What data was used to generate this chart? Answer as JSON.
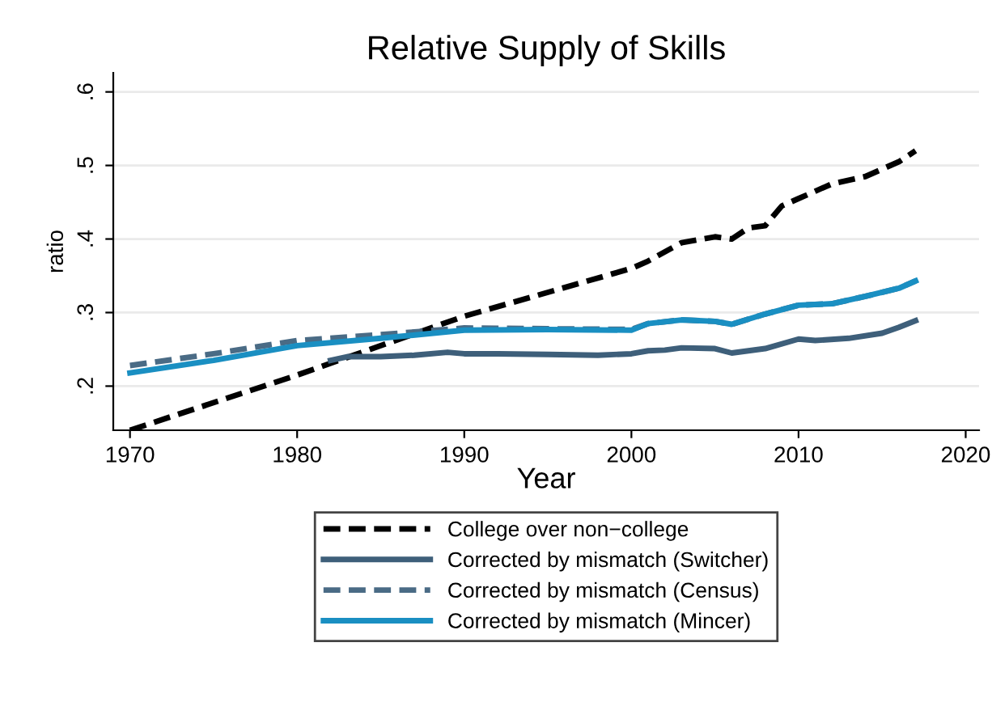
{
  "chart_data": {
    "type": "line",
    "title": "Relative Supply of Skills",
    "xlabel": "Year",
    "ylabel": "ratio",
    "xlim": [
      1969,
      2020.8
    ],
    "xticks": [
      1970,
      1980,
      1990,
      2000,
      2010,
      2020
    ],
    "ylim": [
      0.14,
      0.626
    ],
    "yticks": [
      {
        "value": 0.2,
        "label": ".2"
      },
      {
        "value": 0.3,
        "label": ".3"
      },
      {
        "value": 0.4,
        "label": ".4"
      },
      {
        "value": 0.5,
        "label": ".5"
      },
      {
        "value": 0.6,
        "label": ".6"
      }
    ],
    "grid": "y",
    "legend": "bottom",
    "series": [
      {
        "name": "College over non−college",
        "color": "#000000",
        "line_style": "dashed",
        "x": [
          1970,
          1980,
          1990,
          2000,
          2001,
          2003,
          2005,
          2006,
          2007,
          2008,
          2009,
          2010,
          2012,
          2014,
          2016,
          2017
        ],
        "values": [
          0.14,
          0.215,
          0.295,
          0.36,
          0.37,
          0.395,
          0.403,
          0.4,
          0.415,
          0.418,
          0.445,
          0.455,
          0.475,
          0.485,
          0.505,
          0.52
        ]
      },
      {
        "name": "Corrected by mismatch (Switcher)",
        "color": "#3e5f7a",
        "line_style": "solid",
        "x": [
          1982,
          1983,
          1985,
          1987,
          1989,
          1990,
          1992,
          1995,
          1998,
          2000,
          2001,
          2002,
          2003,
          2005,
          2006,
          2008,
          2010,
          2011,
          2013,
          2015,
          2016,
          2017
        ],
        "values": [
          0.235,
          0.24,
          0.24,
          0.242,
          0.246,
          0.244,
          0.244,
          0.243,
          0.242,
          0.244,
          0.248,
          0.249,
          0.252,
          0.251,
          0.245,
          0.251,
          0.264,
          0.262,
          0.265,
          0.272,
          0.28,
          0.289
        ]
      },
      {
        "name": "Corrected by mismatch (Census)",
        "color": "#4a6b85",
        "line_style": "dashed",
        "x": [
          1970,
          1975,
          1980,
          1985,
          1990,
          1995,
          2000,
          2001,
          2003,
          2005,
          2006,
          2008,
          2010,
          2012,
          2014,
          2016,
          2017
        ],
        "values": [
          0.228,
          0.244,
          0.262,
          0.27,
          0.279,
          0.278,
          0.277,
          0.285,
          0.29,
          0.288,
          0.284,
          0.298,
          0.31,
          0.312,
          0.322,
          0.333,
          0.343
        ]
      },
      {
        "name": "Corrected by mismatch (Mincer)",
        "color": "#1a8fc2",
        "line_style": "solid",
        "x": [
          1970,
          1975,
          1980,
          1985,
          1990,
          1995,
          2000,
          2001,
          2003,
          2005,
          2006,
          2008,
          2010,
          2012,
          2014,
          2016,
          2017
        ],
        "values": [
          0.218,
          0.235,
          0.255,
          0.265,
          0.276,
          0.277,
          0.276,
          0.285,
          0.29,
          0.288,
          0.284,
          0.298,
          0.31,
          0.312,
          0.322,
          0.333,
          0.343
        ]
      }
    ]
  }
}
